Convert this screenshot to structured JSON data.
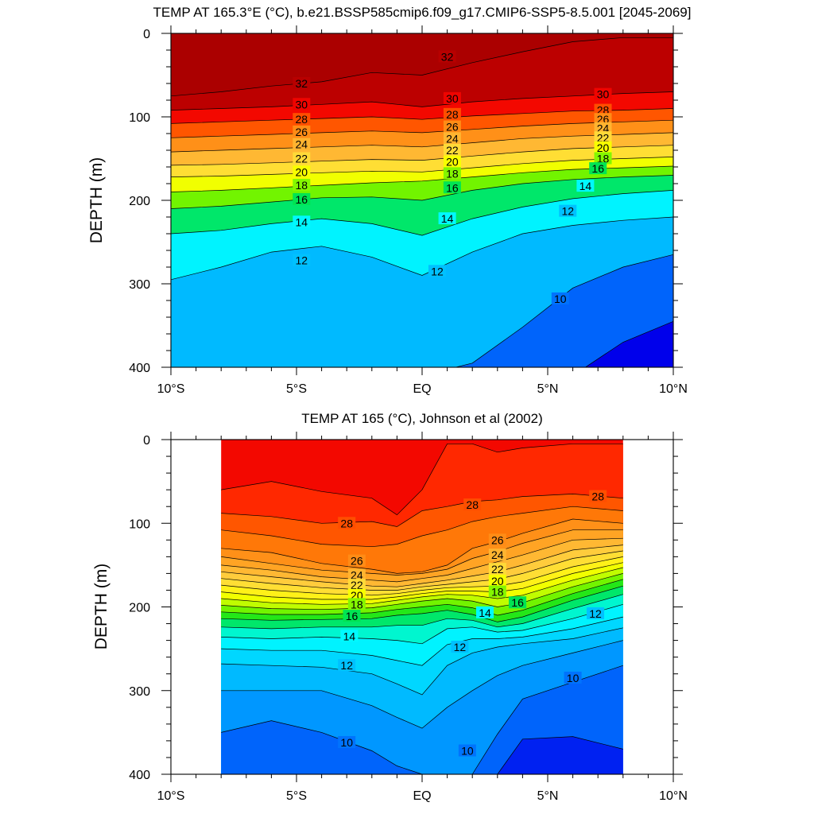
{
  "chart_data": [
    {
      "type": "contour",
      "title": "TEMP AT 165.3°E (°C), b.e21.BSSP585cmip6.f09_g17.CMIP6-SSP5-8.5.001 [2045-2069]",
      "xlabel": "",
      "ylabel": "DEPTH (m)",
      "xlim": [
        -10,
        10
      ],
      "ylim": [
        400,
        0
      ],
      "x_ticks": [
        "10°S",
        "5°S",
        "EQ",
        "5°N",
        "10°N"
      ],
      "y_ticks": [
        "0",
        "100",
        "200",
        "300",
        "400"
      ],
      "contour_interval": 1,
      "x": [
        -10,
        -8,
        -6,
        -4,
        -2,
        0,
        2,
        4,
        6,
        8,
        10
      ],
      "isotherm_depths": [
        {
          "value": 32,
          "depth": [
            75,
            70,
            63,
            58,
            47,
            50,
            35,
            22,
            10,
            5,
            5
          ]
        },
        {
          "value": 30,
          "depth": [
            92,
            90,
            88,
            85,
            82,
            88,
            82,
            78,
            75,
            72,
            70
          ]
        },
        {
          "value": 28,
          "depth": [
            108,
            106,
            104,
            102,
            100,
            103,
            99,
            96,
            93,
            92,
            90
          ]
        },
        {
          "value": 26,
          "depth": [
            125,
            123,
            121,
            119,
            117,
            119,
            115,
            111,
            108,
            106,
            104
          ]
        },
        {
          "value": 24,
          "depth": [
            142,
            140,
            138,
            136,
            134,
            136,
            131,
            126,
            123,
            121,
            119
          ]
        },
        {
          "value": 22,
          "depth": [
            158,
            157,
            155,
            153,
            151,
            152,
            147,
            142,
            138,
            136,
            134
          ]
        },
        {
          "value": 20,
          "depth": [
            172,
            171,
            169,
            167,
            165,
            166,
            161,
            156,
            152,
            150,
            148
          ]
        },
        {
          "value": 18,
          "depth": [
            190,
            188,
            185,
            182,
            179,
            177,
            172,
            167,
            163,
            161,
            159
          ]
        },
        {
          "value": 16,
          "depth": [
            210,
            207,
            202,
            197,
            196,
            200,
            188,
            180,
            175,
            172,
            170
          ]
        },
        {
          "value": 14,
          "depth": [
            240,
            236,
            228,
            222,
            228,
            242,
            222,
            208,
            198,
            192,
            188
          ]
        },
        {
          "value": 12,
          "depth": [
            295,
            280,
            262,
            255,
            268,
            290,
            262,
            240,
            230,
            224,
            220
          ]
        },
        {
          "value": 10,
          "depth": [
            410,
            410,
            410,
            410,
            410,
            410,
            395,
            352,
            305,
            280,
            265
          ]
        },
        {
          "value": 8,
          "depth": [
            410,
            410,
            410,
            410,
            410,
            410,
            410,
            410,
            410,
            370,
            345
          ]
        }
      ],
      "contour_labels": [
        {
          "text": "32",
          "x": -4.8,
          "depth": 60
        },
        {
          "text": "32",
          "x": 1.0,
          "depth": 28
        },
        {
          "text": "30",
          "x": -4.8,
          "depth": 85
        },
        {
          "text": "30",
          "x": 1.2,
          "depth": 78
        },
        {
          "text": "30",
          "x": 7.2,
          "depth": 73
        },
        {
          "text": "28",
          "x": -4.8,
          "depth": 103
        },
        {
          "text": "28",
          "x": 1.2,
          "depth": 97
        },
        {
          "text": "28",
          "x": 7.2,
          "depth": 92
        },
        {
          "text": "26",
          "x": -4.8,
          "depth": 118
        },
        {
          "text": "26",
          "x": 1.2,
          "depth": 112
        },
        {
          "text": "26",
          "x": 7.2,
          "depth": 103
        },
        {
          "text": "24",
          "x": -4.8,
          "depth": 133
        },
        {
          "text": "24",
          "x": 1.2,
          "depth": 126
        },
        {
          "text": "24",
          "x": 7.2,
          "depth": 114
        },
        {
          "text": "22",
          "x": -4.8,
          "depth": 150
        },
        {
          "text": "22",
          "x": 1.2,
          "depth": 140
        },
        {
          "text": "22",
          "x": 7.2,
          "depth": 125
        },
        {
          "text": "20",
          "x": -4.8,
          "depth": 166
        },
        {
          "text": "20",
          "x": 1.2,
          "depth": 154
        },
        {
          "text": "20",
          "x": 7.2,
          "depth": 137
        },
        {
          "text": "18",
          "x": -4.8,
          "depth": 182
        },
        {
          "text": "18",
          "x": 1.2,
          "depth": 168
        },
        {
          "text": "18",
          "x": 7.2,
          "depth": 150
        },
        {
          "text": "16",
          "x": -4.8,
          "depth": 199
        },
        {
          "text": "16",
          "x": 1.2,
          "depth": 185
        },
        {
          "text": "16",
          "x": 7.0,
          "depth": 162
        },
        {
          "text": "14",
          "x": -4.8,
          "depth": 226
        },
        {
          "text": "14",
          "x": 1.0,
          "depth": 222
        },
        {
          "text": "14",
          "x": 6.5,
          "depth": 183
        },
        {
          "text": "12",
          "x": -4.8,
          "depth": 272
        },
        {
          "text": "12",
          "x": 0.6,
          "depth": 285
        },
        {
          "text": "12",
          "x": 5.8,
          "depth": 213
        },
        {
          "text": "10",
          "x": 5.5,
          "depth": 318
        }
      ]
    },
    {
      "type": "contour",
      "title": "TEMP AT 165 (°C), Johnson et al (2002)",
      "xlabel": "",
      "ylabel": "DEPTH (m)",
      "xlim": [
        -10,
        10
      ],
      "ylim": [
        400,
        0
      ],
      "x_ticks": [
        "10°S",
        "5°S",
        "EQ",
        "5°N",
        "10°N"
      ],
      "y_ticks": [
        "0",
        "100",
        "200",
        "300",
        "400"
      ],
      "data_xrange": [
        -8,
        8
      ],
      "contour_interval": 1,
      "x": [
        -8,
        -6,
        -4,
        -2,
        -1,
        0,
        1,
        2,
        3,
        4,
        6,
        8
      ],
      "isotherm_depths": [
        {
          "value": 29,
          "depth": [
            60,
            50,
            62,
            70,
            90,
            60,
            5,
            5,
            15,
            10,
            5,
            5
          ]
        },
        {
          "value": 28,
          "depth": [
            88,
            92,
            100,
            98,
            104,
            85,
            80,
            74,
            72,
            68,
            65,
            70
          ]
        },
        {
          "value": 27,
          "depth": [
            108,
            115,
            125,
            128,
            125,
            115,
            108,
            98,
            92,
            88,
            80,
            85
          ]
        },
        {
          "value": 26,
          "depth": [
            130,
            135,
            148,
            155,
            160,
            158,
            150,
            130,
            122,
            112,
            95,
            100
          ]
        },
        {
          "value": 25,
          "depth": [
            140,
            148,
            156,
            160,
            162,
            160,
            155,
            142,
            134,
            124,
            108,
            108
          ]
        },
        {
          "value": 24,
          "depth": [
            150,
            156,
            164,
            168,
            170,
            166,
            162,
            154,
            146,
            138,
            120,
            118
          ]
        },
        {
          "value": 23,
          "depth": [
            158,
            164,
            170,
            175,
            176,
            172,
            168,
            163,
            158,
            150,
            132,
            126
          ]
        },
        {
          "value": 22,
          "depth": [
            166,
            172,
            177,
            180,
            180,
            176,
            173,
            170,
            167,
            160,
            142,
            133
          ]
        },
        {
          "value": 21,
          "depth": [
            174,
            180,
            184,
            186,
            184,
            180,
            177,
            176,
            175,
            170,
            152,
            140
          ]
        },
        {
          "value": 20,
          "depth": [
            182,
            188,
            191,
            191,
            188,
            184,
            181,
            181,
            182,
            178,
            160,
            147
          ]
        },
        {
          "value": 19,
          "depth": [
            190,
            195,
            197,
            196,
            192,
            188,
            185,
            186,
            190,
            186,
            168,
            153
          ]
        },
        {
          "value": 18,
          "depth": [
            198,
            202,
            203,
            201,
            197,
            193,
            190,
            193,
            200,
            195,
            176,
            160
          ]
        },
        {
          "value": 17,
          "depth": [
            206,
            209,
            209,
            207,
            203,
            200,
            197,
            201,
            210,
            204,
            184,
            167
          ]
        },
        {
          "value": 16,
          "depth": [
            214,
            216,
            215,
            214,
            210,
            208,
            204,
            209,
            218,
            212,
            192,
            175
          ]
        },
        {
          "value": 15,
          "depth": [
            224,
            226,
            224,
            224,
            222,
            222,
            214,
            216,
            224,
            220,
            202,
            185
          ]
        },
        {
          "value": 14,
          "depth": [
            236,
            238,
            236,
            238,
            240,
            244,
            226,
            224,
            230,
            228,
            214,
            197
          ]
        },
        {
          "value": 13,
          "depth": [
            250,
            252,
            252,
            258,
            264,
            270,
            245,
            238,
            238,
            236,
            226,
            212
          ]
        },
        {
          "value": 12,
          "depth": [
            268,
            270,
            272,
            280,
            292,
            305,
            270,
            255,
            248,
            244,
            238,
            225
          ]
        },
        {
          "value": 11,
          "depth": [
            300,
            300,
            300,
            318,
            332,
            345,
            320,
            300,
            282,
            270,
            255,
            240
          ]
        },
        {
          "value": 10,
          "depth": [
            350,
            336,
            350,
            372,
            390,
            400,
            400,
            400,
            352,
            310,
            290,
            270
          ]
        },
        {
          "value": 9,
          "depth": [
            400,
            400,
            400,
            400,
            400,
            400,
            400,
            400,
            400,
            358,
            355,
            370
          ]
        }
      ],
      "contour_labels": [
        {
          "text": "28",
          "x": -3.0,
          "depth": 100
        },
        {
          "text": "28",
          "x": 2.0,
          "depth": 78
        },
        {
          "text": "28",
          "x": 7.0,
          "depth": 68
        },
        {
          "text": "26",
          "x": -2.6,
          "depth": 145
        },
        {
          "text": "26",
          "x": 3.0,
          "depth": 120
        },
        {
          "text": "24",
          "x": -2.6,
          "depth": 162
        },
        {
          "text": "24",
          "x": 3.0,
          "depth": 138
        },
        {
          "text": "22",
          "x": -2.6,
          "depth": 174
        },
        {
          "text": "22",
          "x": 3.0,
          "depth": 155
        },
        {
          "text": "20",
          "x": -2.6,
          "depth": 186
        },
        {
          "text": "20",
          "x": 3.0,
          "depth": 169
        },
        {
          "text": "18",
          "x": -2.6,
          "depth": 197
        },
        {
          "text": "18",
          "x": 3.0,
          "depth": 182
        },
        {
          "text": "16",
          "x": -2.8,
          "depth": 211
        },
        {
          "text": "16",
          "x": 3.8,
          "depth": 195
        },
        {
          "text": "14",
          "x": -2.9,
          "depth": 235
        },
        {
          "text": "14",
          "x": 2.5,
          "depth": 207
        },
        {
          "text": "12",
          "x": 6.9,
          "depth": 208
        },
        {
          "text": "12",
          "x": -3.0,
          "depth": 270
        },
        {
          "text": "12",
          "x": 1.5,
          "depth": 248
        },
        {
          "text": "10",
          "x": 6.0,
          "depth": 285
        },
        {
          "text": "10",
          "x": -3.0,
          "depth": 362
        },
        {
          "text": "10",
          "x": 1.8,
          "depth": 372
        }
      ]
    }
  ]
}
